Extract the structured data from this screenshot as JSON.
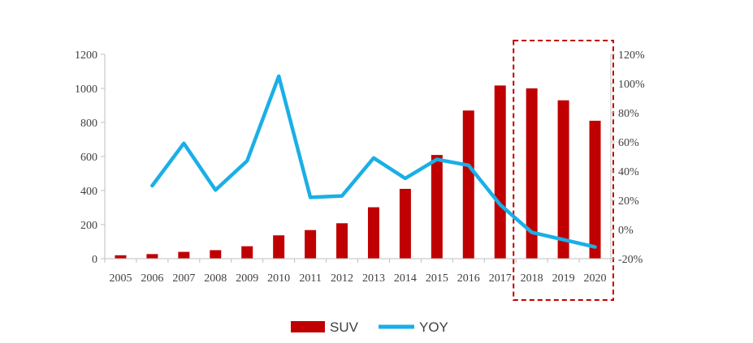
{
  "chart_data": {
    "type": "bar",
    "title": "",
    "categories": [
      "2005",
      "2006",
      "2007",
      "2008",
      "2009",
      "2010",
      "2011",
      "2012",
      "2013",
      "2014",
      "2015",
      "2016",
      "2017",
      "2018",
      "2019",
      "2020"
    ],
    "series": [
      {
        "name": "SUV",
        "type": "bar",
        "axis": "left",
        "color": "#C00000",
        "values": [
          20,
          27,
          40,
          50,
          73,
          137,
          168,
          208,
          302,
          410,
          609,
          870,
          1017,
          1000,
          930,
          810
        ]
      },
      {
        "name": "YOY",
        "type": "line",
        "axis": "right",
        "color": "#1AAFE6",
        "values": [
          null,
          30,
          59,
          27,
          47,
          105,
          22,
          23,
          49,
          35,
          48,
          44,
          17,
          -2,
          -7,
          -12
        ]
      }
    ],
    "y_left": {
      "min": 0,
      "max": 1200,
      "ticks": [
        "0",
        "200",
        "400",
        "600",
        "800",
        "1000",
        "1200"
      ]
    },
    "y_right": {
      "min": -20,
      "max": 120,
      "ticks": [
        "-20%",
        "0%",
        "20%",
        "40%",
        "60%",
        "80%",
        "100%",
        "120%"
      ]
    },
    "highlight": {
      "from": "2018",
      "to": "2020",
      "style": "dashed",
      "color": "#C00000"
    },
    "grid": false,
    "legend": {
      "position": "bottom-center",
      "items": [
        "SUV",
        "YOY"
      ]
    }
  }
}
